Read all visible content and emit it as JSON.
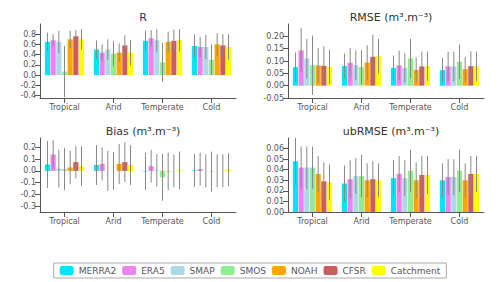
{
  "chart_data": [
    {
      "type": "bar",
      "title": "R",
      "categories": [
        "Tropical",
        "Arid",
        "Temperate",
        "Cold"
      ],
      "series": [
        {
          "name": "MERRA2",
          "color": "#00e5ff",
          "values": [
            0.65,
            0.5,
            0.67,
            0.57
          ],
          "errors": [
            0.18,
            0.18,
            0.2,
            0.22
          ]
        },
        {
          "name": "ERA5",
          "color": "#ee82ee",
          "values": [
            0.68,
            0.44,
            0.72,
            0.55
          ],
          "errors": [
            0.12,
            0.16,
            0.16,
            0.2
          ]
        },
        {
          "name": "SMAP",
          "color": "#add8e6",
          "values": [
            0.65,
            0.5,
            0.68,
            0.55
          ],
          "errors": [
            0.22,
            0.2,
            0.22,
            0.24
          ]
        },
        {
          "name": "SMOS",
          "color": "#90ee90",
          "values": [
            0.07,
            0.42,
            0.25,
            0.3
          ],
          "errors": [
            0.5,
            0.25,
            0.38,
            0.3
          ]
        },
        {
          "name": "NOAH",
          "color": "#ffa500",
          "values": [
            0.7,
            0.44,
            0.65,
            0.6
          ],
          "errors": [
            0.17,
            0.18,
            0.2,
            0.22
          ]
        },
        {
          "name": "CFSR",
          "color": "#cd5c5c",
          "values": [
            0.76,
            0.58,
            0.67,
            0.58
          ],
          "errors": [
            0.12,
            0.2,
            0.22,
            0.22
          ]
        },
        {
          "name": "Catchment",
          "color": "#ffff00",
          "values": [
            0.7,
            0.44,
            0.68,
            0.55
          ],
          "errors": [
            0.2,
            0.25,
            0.22,
            0.25
          ]
        }
      ],
      "ylim": [
        -0.45,
        1.0
      ],
      "yticks": [
        -0.4,
        -0.2,
        {
          "value": 0,
          "label": "0.0"
        },
        0.2,
        0.4,
        0.6,
        0.8
      ],
      "grid": false,
      "legend": "bottom"
    },
    {
      "type": "bar",
      "title": "RMSE (m³.m⁻³)",
      "categories": [
        "Tropical",
        "Arid",
        "Temperate",
        "Cold"
      ],
      "series": [
        {
          "name": "MERRA2",
          "color": "#00e5ff",
          "values": [
            0.075,
            0.08,
            0.072,
            0.063
          ],
          "errors": [
            0.06,
            0.05,
            0.05,
            0.05
          ]
        },
        {
          "name": "ERA5",
          "color": "#ee82ee",
          "values": [
            0.143,
            0.093,
            0.082,
            0.078
          ],
          "errors": [
            0.09,
            0.06,
            0.06,
            0.06
          ]
        },
        {
          "name": "SMAP",
          "color": "#add8e6",
          "values": [
            0.11,
            0.083,
            0.072,
            0.078
          ],
          "errors": [
            0.08,
            0.06,
            0.06,
            0.06
          ]
        },
        {
          "name": "SMOS",
          "color": "#90ee90",
          "values": [
            0.083,
            0.075,
            0.11,
            0.097
          ],
          "errors": [
            0.12,
            0.07,
            0.08,
            0.07
          ]
        },
        {
          "name": "NOAH",
          "color": "#ffa500",
          "values": [
            0.082,
            0.094,
            0.064,
            0.067
          ],
          "errors": [
            0.07,
            0.07,
            0.05,
            0.05
          ]
        },
        {
          "name": "CFSR",
          "color": "#cd5c5c",
          "values": [
            0.08,
            0.117,
            0.078,
            0.079
          ],
          "errors": [
            0.08,
            0.09,
            0.06,
            0.06
          ]
        },
        {
          "name": "Catchment",
          "color": "#ffff00",
          "values": [
            0.076,
            0.12,
            0.079,
            0.079
          ],
          "errors": [
            0.07,
            0.07,
            0.06,
            0.06
          ]
        }
      ],
      "ylim": [
        -0.05,
        0.25
      ],
      "yticks": [
        -0.05,
        {
          "value": 0,
          "label": "0.00"
        },
        0.05,
        {
          "value": 0.1,
          "label": "0.10"
        },
        0.15,
        {
          "value": 0.2,
          "label": "0.20"
        }
      ],
      "grid": false,
      "legend": "bottom"
    },
    {
      "type": "bar",
      "title": "Bias (m³.m⁻³)",
      "categories": [
        "Tropical",
        "Arid",
        "Temperate",
        "Cold"
      ],
      "series": [
        {
          "name": "MERRA2",
          "color": "#00e5ff",
          "values": [
            0.055,
            0.05,
            -0.005,
            0.005
          ],
          "errors": [
            0.2,
            0.17,
            0.16,
            0.14
          ]
        },
        {
          "name": "ERA5",
          "color": "#ee82ee",
          "values": [
            0.14,
            0.06,
            0.04,
            0.015
          ],
          "errors": [
            0.12,
            0.14,
            0.14,
            0.14
          ]
        },
        {
          "name": "SMAP",
          "color": "#add8e6",
          "values": [
            0.02,
            0.0,
            0.005,
            0.0
          ],
          "errors": [
            0.16,
            0.17,
            0.14,
            0.14
          ]
        },
        {
          "name": "SMOS",
          "color": "#90ee90",
          "values": [
            0.015,
            0.0,
            -0.055,
            -0.005
          ],
          "errors": [
            0.18,
            0.16,
            0.2,
            0.17
          ]
        },
        {
          "name": "NOAH",
          "color": "#ffa500",
          "values": [
            0.03,
            0.06,
            -0.005,
            0.0
          ],
          "errors": [
            0.14,
            0.17,
            0.16,
            0.14
          ]
        },
        {
          "name": "CFSR",
          "color": "#cd5c5c",
          "values": [
            0.075,
            0.075,
            0.0,
            0.0
          ],
          "errors": [
            0.14,
            0.17,
            0.14,
            0.14
          ]
        },
        {
          "name": "Catchment",
          "color": "#ffff00",
          "values": [
            0.04,
            0.05,
            0.005,
            0.01
          ],
          "errors": [
            0.17,
            0.17,
            0.16,
            0.14
          ]
        }
      ],
      "ylim": [
        -0.35,
        0.28
      ],
      "yticks": [
        -0.3,
        -0.2,
        -0.1,
        {
          "value": 0,
          "label": "0.0"
        },
        0.1,
        0.2
      ],
      "grid": false,
      "legend": "bottom"
    },
    {
      "type": "bar",
      "title": "ubRMSE (m³.m⁻³)",
      "categories": [
        "Tropical",
        "Arid",
        "Temperate",
        "Cold"
      ],
      "series": [
        {
          "name": "MERRA2",
          "color": "#00e5ff",
          "values": [
            0.048,
            0.027,
            0.032,
            0.03
          ],
          "errors": [
            0.022,
            0.017,
            0.017,
            0.016
          ]
        },
        {
          "name": "ERA5",
          "color": "#ee82ee",
          "values": [
            0.042,
            0.031,
            0.036,
            0.033
          ],
          "errors": [
            0.02,
            0.018,
            0.017,
            0.017
          ]
        },
        {
          "name": "SMAP",
          "color": "#add8e6",
          "values": [
            0.042,
            0.034,
            0.032,
            0.033
          ],
          "errors": [
            0.02,
            0.017,
            0.017,
            0.017
          ]
        },
        {
          "name": "SMOS",
          "color": "#90ee90",
          "values": [
            0.042,
            0.034,
            0.039,
            0.039
          ],
          "errors": [
            0.02,
            0.02,
            0.02,
            0.02
          ]
        },
        {
          "name": "NOAH",
          "color": "#ffa500",
          "values": [
            0.036,
            0.03,
            0.03,
            0.03
          ],
          "errors": [
            0.017,
            0.016,
            0.017,
            0.016
          ]
        },
        {
          "name": "CFSR",
          "color": "#cd5c5c",
          "values": [
            0.029,
            0.031,
            0.035,
            0.036
          ],
          "errors": [
            0.018,
            0.017,
            0.018,
            0.017
          ]
        },
        {
          "name": "Catchment",
          "color": "#ffff00",
          "values": [
            0.028,
            0.03,
            0.035,
            0.036
          ],
          "errors": [
            0.017,
            0.016,
            0.018,
            0.017
          ]
        }
      ],
      "ylim": [
        0,
        0.07
      ],
      "yticks": [
        {
          "value": 0,
          "label": "0.00"
        },
        0.01,
        0.02,
        0.03,
        0.04,
        0.05,
        0.06
      ],
      "grid": false,
      "legend": "bottom"
    }
  ]
}
